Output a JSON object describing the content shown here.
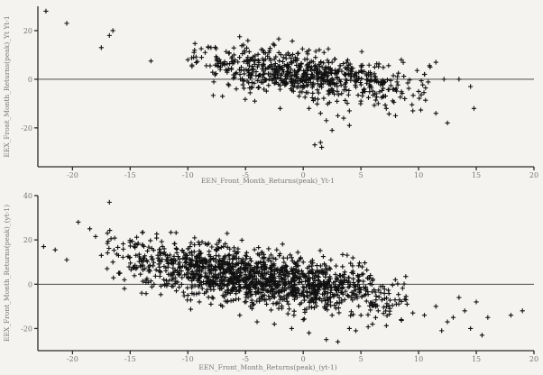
{
  "chart_data": [
    {
      "type": "scatter",
      "xlabel": "EEN_Front_Month_Returns(peak)_Yt-1",
      "ylabel": "EEX_Front_Month_Returns(peak)_Yt Yt-1",
      "xlim": [
        -23,
        20
      ],
      "ylim": [
        -36,
        30
      ],
      "xticks": [
        -20,
        -15,
        -10,
        -5,
        0,
        5,
        10,
        15,
        20
      ],
      "yticks": [
        20,
        0,
        -20
      ],
      "reference_line": {
        "y": 0
      },
      "point_marker": "plus",
      "points": [
        [
          -22.3,
          28
        ],
        [
          -20.5,
          23
        ],
        [
          -16.5,
          20
        ],
        [
          -16.8,
          18
        ],
        [
          -17.5,
          13
        ],
        [
          -13.2,
          7.5
        ],
        [
          -8.5,
          11
        ],
        [
          -9.5,
          9
        ],
        [
          -8,
          13
        ],
        [
          -10,
          8
        ],
        [
          -7.5,
          8
        ],
        [
          -6.8,
          6
        ],
        [
          -7.2,
          4
        ],
        [
          -6,
          10
        ],
        [
          -4.8,
          9
        ],
        [
          -4.8,
          7
        ],
        [
          -3.5,
          12
        ],
        [
          -2.5,
          14
        ],
        [
          -1.5,
          10
        ],
        [
          0.5,
          12
        ],
        [
          1.8,
          11
        ],
        [
          2.5,
          7
        ],
        [
          -7,
          -7
        ],
        [
          -6.5,
          -2
        ],
        [
          -5.8,
          -4
        ],
        [
          -4.2,
          -9
        ],
        [
          -2,
          -12
        ],
        [
          0.5,
          -12
        ],
        [
          1.5,
          -14
        ],
        [
          2,
          -17
        ],
        [
          3.5,
          -16
        ],
        [
          3,
          -15
        ],
        [
          4,
          -13
        ],
        [
          4,
          -19
        ],
        [
          1,
          -27
        ],
        [
          1.6,
          -28
        ],
        [
          1.5,
          -26
        ],
        [
          2.5,
          -21
        ],
        [
          5,
          -9
        ],
        [
          6.5,
          -10
        ],
        [
          7.2,
          -12
        ],
        [
          7,
          -7
        ],
        [
          8.8,
          -8
        ],
        [
          8,
          -15
        ],
        [
          9.5,
          -13
        ],
        [
          10,
          -5
        ],
        [
          8.5,
          8
        ],
        [
          11,
          5
        ],
        [
          10.5,
          2
        ],
        [
          11.5,
          7
        ],
        [
          12.2,
          0
        ],
        [
          12.5,
          -18
        ],
        [
          11.5,
          -14
        ],
        [
          14.5,
          -3
        ],
        [
          14.8,
          -12
        ],
        [
          13.5,
          0
        ]
      ],
      "cloud": {
        "x_range": [
          -8,
          9
        ],
        "slope": -0.55,
        "center_y": 2,
        "spread": 4.5
      }
    },
    {
      "type": "scatter",
      "xlabel": "EEN_Front_Month_Returns(peak)_(yt-1)",
      "ylabel": "EEX_Front_Month_Returns(peak)_(yt-1)",
      "xlim": [
        -23,
        20
      ],
      "ylim": [
        -30,
        40
      ],
      "xticks": [
        -20,
        -15,
        -10,
        -5,
        0,
        5,
        10,
        15,
        20
      ],
      "yticks": [
        40,
        20,
        0,
        -20
      ],
      "reference_line": {
        "y": 0
      },
      "point_marker": "plus",
      "points": [
        [
          -22.5,
          17
        ],
        [
          -21.5,
          15.5
        ],
        [
          -20.5,
          11
        ],
        [
          -19.5,
          28
        ],
        [
          -18.5,
          25
        ],
        [
          -18,
          21.5
        ],
        [
          -17.5,
          13
        ],
        [
          -16.5,
          10
        ],
        [
          -17,
          7
        ],
        [
          -16,
          5
        ],
        [
          -15.5,
          2
        ],
        [
          -15.5,
          -2
        ],
        [
          -14.5,
          13
        ],
        [
          -13.5,
          15
        ],
        [
          -12.5,
          11
        ],
        [
          -14,
          -4
        ],
        [
          -16.8,
          37
        ],
        [
          -12,
          0
        ],
        [
          -11,
          -3
        ],
        [
          -10,
          -5
        ],
        [
          -9,
          -8
        ],
        [
          -8,
          -9
        ],
        [
          -7,
          -10
        ],
        [
          -5.5,
          -14
        ],
        [
          -4,
          -17
        ],
        [
          -2.5,
          -18
        ],
        [
          -1,
          -20
        ],
        [
          0.5,
          -22
        ],
        [
          2,
          -25
        ],
        [
          3,
          -26
        ],
        [
          0,
          -16
        ],
        [
          2.5,
          -14
        ],
        [
          4,
          -20
        ],
        [
          5,
          -14
        ],
        [
          6,
          -18
        ],
        [
          6.5,
          -12
        ],
        [
          7.5,
          -11
        ],
        [
          8.5,
          -16
        ],
        [
          9,
          -9
        ],
        [
          9.5,
          -13
        ],
        [
          10.5,
          -14
        ],
        [
          11.5,
          -10
        ],
        [
          12,
          -21
        ],
        [
          12.5,
          -17
        ],
        [
          13,
          -15
        ],
        [
          13.5,
          -6
        ],
        [
          14,
          -12
        ],
        [
          14.5,
          -20
        ],
        [
          15,
          -8
        ],
        [
          15.5,
          -23
        ],
        [
          16,
          -15
        ],
        [
          18,
          -14
        ],
        [
          19,
          -12
        ],
        [
          -3,
          16
        ],
        [
          -5,
          13
        ],
        [
          -7.5,
          18
        ],
        [
          -9,
          15
        ],
        [
          -1,
          12
        ]
      ],
      "cloud": {
        "x_range": [
          -15,
          7
        ],
        "slope": -0.75,
        "center_y": 0,
        "spread": 6
      }
    }
  ]
}
